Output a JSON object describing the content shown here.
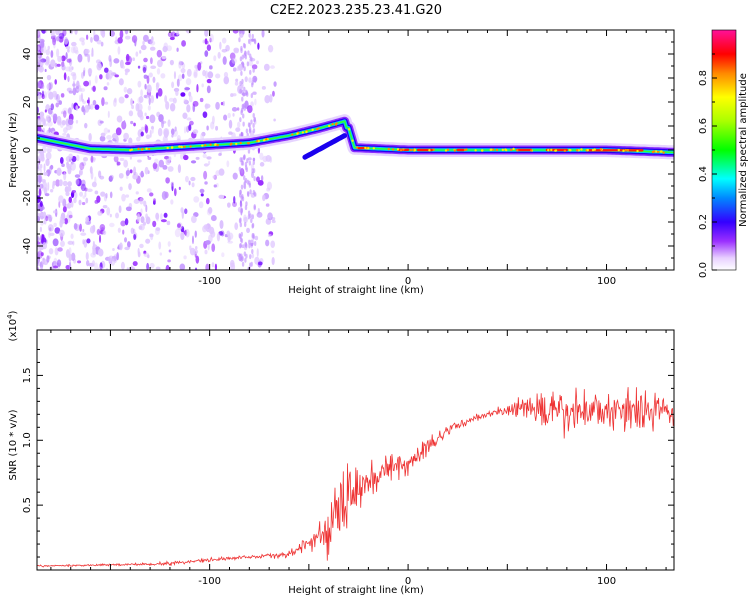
{
  "title": "C2E2.2023.235.23.41.G20",
  "chart_data": [
    {
      "type": "heatmap",
      "xlabel": "Height of straight line (km)",
      "ylabel": "Frequency (Hz)",
      "xlim": [
        -187,
        134
      ],
      "ylim": [
        -50,
        50
      ],
      "xticks": [
        -100,
        0,
        100
      ],
      "yticks": [
        -40,
        -20,
        0,
        20,
        40
      ],
      "xtick_labels": [
        "-100",
        "0",
        "100"
      ],
      "ytick_labels": [
        "-40",
        "-20",
        "0",
        "20",
        "40"
      ],
      "colorbar": {
        "label": "Normalized spectral amplitude",
        "range": [
          0,
          1
        ],
        "ticks": [
          0,
          0.2,
          0.4,
          0.6,
          0.8
        ],
        "tick_labels": [
          "0.0",
          "0.2",
          "0.4",
          "0.6",
          "0.8"
        ]
      },
      "ridge": [
        {
          "x": -187,
          "freq": 5
        },
        {
          "x": -160,
          "freq": 0.5
        },
        {
          "x": -140,
          "freq": 0
        },
        {
          "x": -120,
          "freq": 1
        },
        {
          "x": -100,
          "freq": 2
        },
        {
          "x": -80,
          "freq": 3
        },
        {
          "x": -60,
          "freq": 6
        },
        {
          "x": -45,
          "freq": 9
        },
        {
          "x": -32,
          "freq": 12
        },
        {
          "x": -28,
          "freq": 1
        },
        {
          "x": 0,
          "freq": 0
        },
        {
          "x": 50,
          "freq": 0
        },
        {
          "x": 100,
          "freq": 0
        },
        {
          "x": 134,
          "freq": -1
        }
      ]
    },
    {
      "type": "line",
      "xlabel": "Height of straight line (km)",
      "ylabel": "SNR (10 * v/v)",
      "yscale_label": "(x10",
      "yscale_exp": "4",
      "yscale_close": ")",
      "xlim": [
        -187,
        134
      ],
      "ylim": [
        0,
        1.85
      ],
      "xticks": [
        -100,
        0,
        100
      ],
      "yticks": [
        0.5,
        1.0,
        1.5
      ],
      "xtick_labels": [
        "-100",
        "0",
        "100"
      ],
      "ytick_labels": [
        "0.5",
        "1.0",
        "1.5"
      ],
      "color": "#ee3333",
      "series": [
        {
          "x": [
            -187,
            -150,
            -120,
            -100,
            -80,
            -60,
            -45,
            -40,
            -35,
            -30,
            -25,
            -20,
            -10,
            0,
            10,
            20,
            30,
            40,
            50,
            60,
            70,
            80,
            90,
            100,
            110,
            120,
            134
          ],
          "values": [
            0.03,
            0.04,
            0.05,
            0.08,
            0.1,
            0.12,
            0.25,
            0.3,
            0.45,
            0.55,
            0.62,
            0.7,
            0.78,
            0.82,
            0.95,
            1.08,
            1.15,
            1.2,
            1.23,
            1.25,
            1.22,
            1.2,
            1.24,
            1.22,
            1.25,
            1.24,
            1.2
          ],
          "noise": [
            0.01,
            0.01,
            0.02,
            0.02,
            0.02,
            0.04,
            0.12,
            0.3,
            0.4,
            0.35,
            0.3,
            0.2,
            0.15,
            0.12,
            0.1,
            0.06,
            0.04,
            0.04,
            0.06,
            0.2,
            0.22,
            0.24,
            0.22,
            0.2,
            0.24,
            0.24,
            0.18
          ]
        }
      ]
    }
  ]
}
